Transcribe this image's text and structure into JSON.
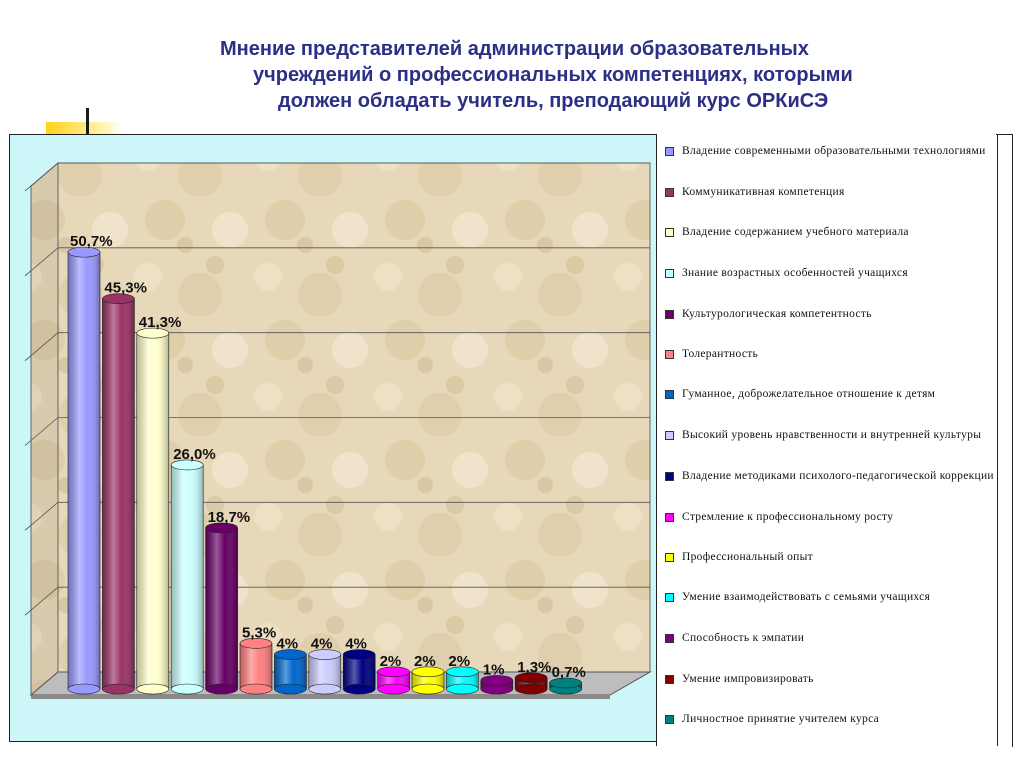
{
  "title": {
    "line1": "Мнение представителей администрации образовательных",
    "line2": "учреждений о профессиональных компетенциях, которыми",
    "line3": "должен обладать учитель, преподающий  курс ОРКиСЭ"
  },
  "chart_data": {
    "type": "bar",
    "ylim": [
      0,
      60
    ],
    "grid": true,
    "legend_position": "right",
    "categories": [
      "Владение современными образовательными технологиями",
      "Коммуникативная компетенция",
      "Владение содержанием учебного материала",
      "Знание возрастных особенностей учащихся",
      "Культурологическая компетентность",
      "Толерантность",
      "Гуманное, доброжелательное отношение к детям",
      "Высокий уровень нравственности и внутренней культуры",
      "Владение методиками психолого-педагогической коррекции",
      "Стремление к профессиональному росту",
      "Профессиональный опыт",
      " Умение взаимодействовать с семьями учащихся",
      "Способность к эмпатии",
      "Умение импровизировать",
      "Личностное принятие учителем курса"
    ],
    "values": [
      50.7,
      45.3,
      41.3,
      26.0,
      18.7,
      5.3,
      4,
      4,
      4,
      2,
      2,
      2,
      1,
      1.3,
      0.7
    ],
    "data_labels": [
      "50,7%",
      "45,3%",
      "41,3%",
      "26,0%",
      "18,7%",
      "5,3%",
      "4%",
      "4%",
      "4%",
      "2%",
      "2%",
      "2%",
      "1%",
      "1,3%",
      "0,7%"
    ],
    "colors": [
      "#9999ff",
      "#993366",
      "#ffffcc",
      "#ccffff",
      "#660066",
      "#ff8080",
      "#0066cc",
      "#ccccff",
      "#000080",
      "#ff00ff",
      "#ffff00",
      "#00ffff",
      "#800080",
      "#800000",
      "#008080"
    ]
  }
}
